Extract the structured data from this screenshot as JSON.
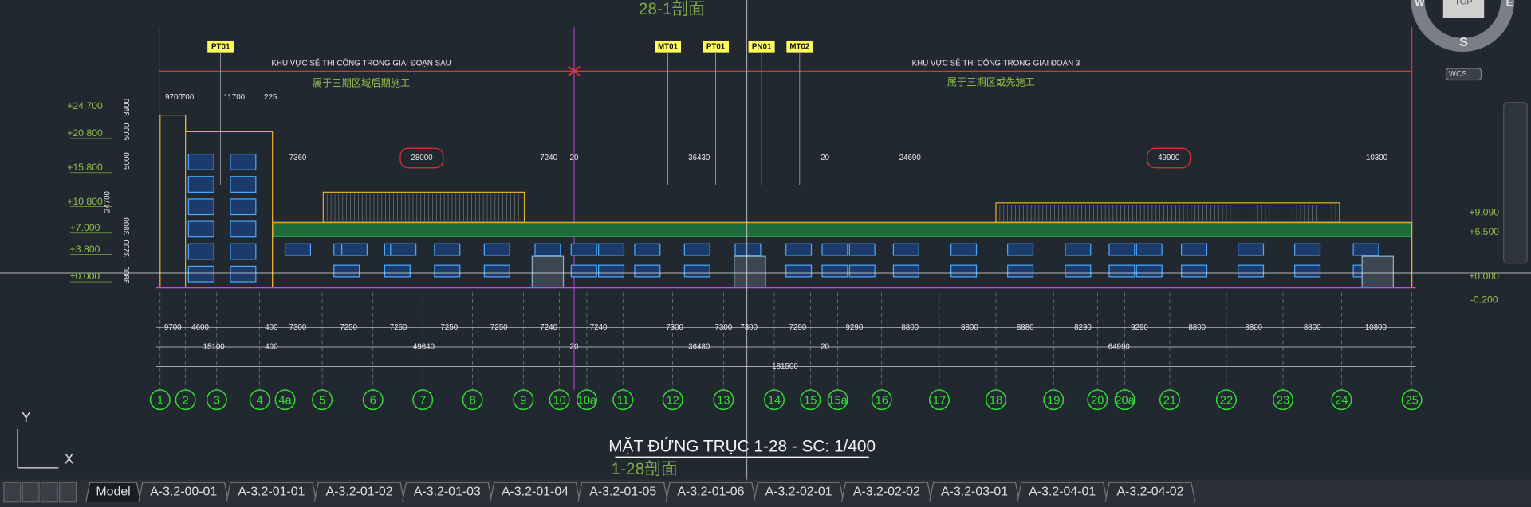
{
  "header": {
    "section_top": "28-1剖面",
    "section_bottom": "1-28剖面",
    "title": "MẶT ĐỨNG TRỤC 1-28  - SC: 1/400"
  },
  "tags": [
    "PT01",
    "MT01",
    "PT01",
    "PN01",
    "MT02"
  ],
  "zones": [
    {
      "label": "KHU VỰC SẼ THI CÔNG TRONG GIAI ĐOẠN SAU",
      "note": "属于三期区域后期施工"
    },
    {
      "label": "KHU VỰC SẼ THI CÔNG TRONG GIAI ĐOẠN 3",
      "note": "属于三期区或先施工"
    }
  ],
  "elevations_left": [
    "+24.700",
    "+20.800",
    "+15.800",
    "+10.800",
    "+7.000",
    "+3.800",
    "±0.000"
  ],
  "elevations_right": [
    "+9.090",
    "+6.500",
    "±0.000",
    "-0.200"
  ],
  "dims_top": [
    "9700",
    "700",
    "11700",
    "225"
  ],
  "dims_roof": [
    "7360",
    "28000",
    "7240",
    "20",
    "36430",
    "20",
    "24690",
    "49900",
    "10300"
  ],
  "dims_vertical": [
    "3900",
    "5000",
    "5000",
    "24700",
    "3800",
    "3200",
    "3800"
  ],
  "dims_row1": [
    "9700",
    "4600",
    "400",
    "7300",
    "7250",
    "7250",
    "7250",
    "7250",
    "7240",
    "7240",
    "7300",
    "7300",
    "7300",
    "7290",
    "9290",
    "8800",
    "8800",
    "8880",
    "8290",
    "9290",
    "8800",
    "8800",
    "8800",
    "10800"
  ],
  "dims_row2": [
    "15100",
    "400",
    "49640",
    "20",
    "36480",
    "20",
    "64990"
  ],
  "dims_row3": [
    "181500"
  ],
  "grid_axes": [
    "1",
    "2",
    "3",
    "4",
    "4a",
    "5",
    "6",
    "7",
    "8",
    "9",
    "10",
    "10a",
    "11",
    "12",
    "13",
    "14",
    "15",
    "15a",
    "16",
    "17",
    "18",
    "19",
    "20",
    "20a",
    "21",
    "22",
    "23",
    "24",
    "25"
  ],
  "compass": {
    "west": "W",
    "south": "S",
    "east": "E",
    "top": "TOP",
    "wcs": "WCS"
  },
  "ucs": {
    "x": "X",
    "y": "Y"
  },
  "tabs": [
    "Model",
    "A-3.2-00-01",
    "A-3.2-01-01",
    "A-3.2-01-02",
    "A-3.2-01-03",
    "A-3.2-01-04",
    "A-3.2-01-05",
    "A-3.2-01-06",
    "A-3.2-02-01",
    "A-3.2-02-02",
    "A-3.2-03-01",
    "A-3.2-04-01",
    "A-3.2-04-02"
  ]
}
